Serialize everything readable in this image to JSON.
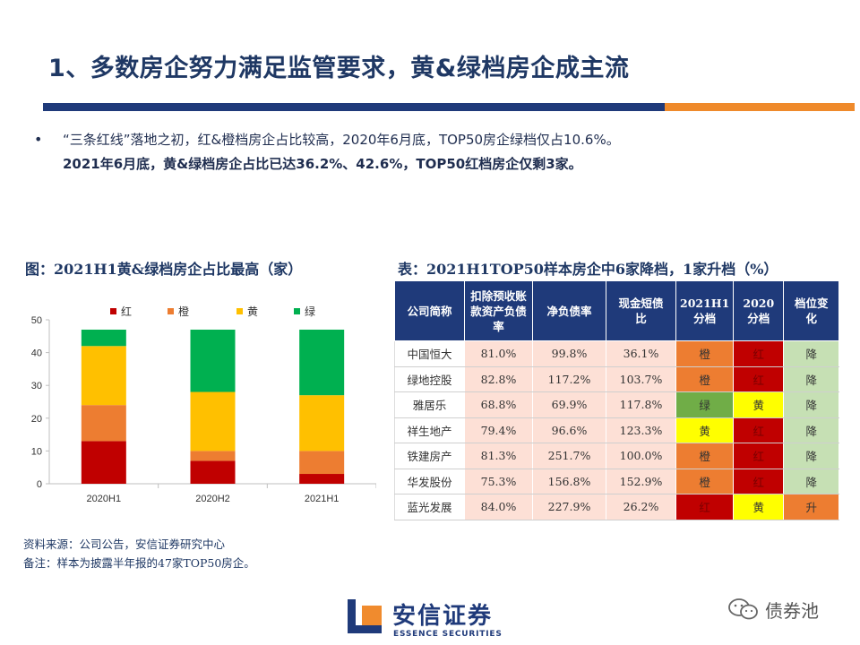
{
  "slide": {
    "title": "1、多数房企努力满足监管要求，黄&绿档房企成主流",
    "bullet_marker": "•",
    "bullet_line1": "“三条红线”落地之初，红&橙档房企占比较高，2020年6月底，TOP50房企绿档仅占10.6%。",
    "bullet_line2": "2021年6月底，黄&绿档房企占比已达36.2%、42.6%，TOP50红档房企仅剩3家。"
  },
  "chart_title": "图：2021H1黄&绿档房企占比最高（家）",
  "chart_data": {
    "type": "bar",
    "stacked": true,
    "title": "图：2021H1黄&绿档房企占比最高（家）",
    "categories": [
      "2020H1",
      "2020H2",
      "2021H1"
    ],
    "series": [
      {
        "name": "红",
        "color": "#c00000",
        "values": [
          13,
          7,
          3
        ]
      },
      {
        "name": "橙",
        "color": "#ed7d31",
        "values": [
          11,
          3,
          7
        ]
      },
      {
        "name": "黄",
        "color": "#ffc000",
        "values": [
          18,
          18,
          17
        ]
      },
      {
        "name": "绿",
        "color": "#00b050",
        "values": [
          5,
          19,
          20
        ]
      }
    ],
    "ylim": [
      0,
      50
    ],
    "yticks": [
      0,
      10,
      20,
      30,
      40,
      50
    ],
    "xlabel": "",
    "ylabel": "",
    "legend": "top",
    "grid": false
  },
  "table": {
    "title": "表：2021H1TOP50样本房企中6家降档，1家升档（%）",
    "headers": [
      "公司简称",
      "扣除预收账款资产负债率",
      "净负债率",
      "现金短债比",
      "2021H1分档",
      "2020分档",
      "档位变化"
    ],
    "rows": [
      {
        "name": "中国恒大",
        "alr": "81.0%",
        "ndr": "99.8%",
        "cash": "36.1%",
        "t2021": "橙",
        "t2020": "红",
        "chg": "降"
      },
      {
        "name": "绿地控股",
        "alr": "82.8%",
        "ndr": "117.2%",
        "cash": "103.7%",
        "t2021": "橙",
        "t2020": "红",
        "chg": "降"
      },
      {
        "name": "雅居乐",
        "alr": "68.8%",
        "ndr": "69.9%",
        "cash": "117.8%",
        "t2021": "绿",
        "t2020": "黄",
        "chg": "降"
      },
      {
        "name": "祥生地产",
        "alr": "79.4%",
        "ndr": "96.6%",
        "cash": "123.3%",
        "t2021": "黄",
        "t2020": "红",
        "chg": "降"
      },
      {
        "name": "铁建房产",
        "alr": "81.3%",
        "ndr": "251.7%",
        "cash": "100.0%",
        "t2021": "橙",
        "t2020": "红",
        "chg": "降"
      },
      {
        "name": "华发股份",
        "alr": "75.3%",
        "ndr": "156.8%",
        "cash": "152.9%",
        "t2021": "橙",
        "t2020": "红",
        "chg": "降"
      },
      {
        "name": "蓝光发展",
        "alr": "84.0%",
        "ndr": "227.9%",
        "cash": "26.2%",
        "t2021": "红",
        "t2020": "黄",
        "chg": "升"
      }
    ]
  },
  "tier_colors": {
    "红": "#c00000",
    "橙": "#ed7d31",
    "黄": "#ffff00",
    "绿": "#70ad47"
  },
  "change_colors": {
    "降": "#c6e0b4",
    "升": "#ed7d31"
  },
  "source": {
    "line1": "资料来源：公司公告，安信证券研究中心",
    "line2": "备注：样本为披露半年报的47家TOP50房企。"
  },
  "logo": {
    "name": "安信证券",
    "sub": "ESSENCE SECURITIES"
  },
  "watermark": {
    "text": "债券池"
  }
}
